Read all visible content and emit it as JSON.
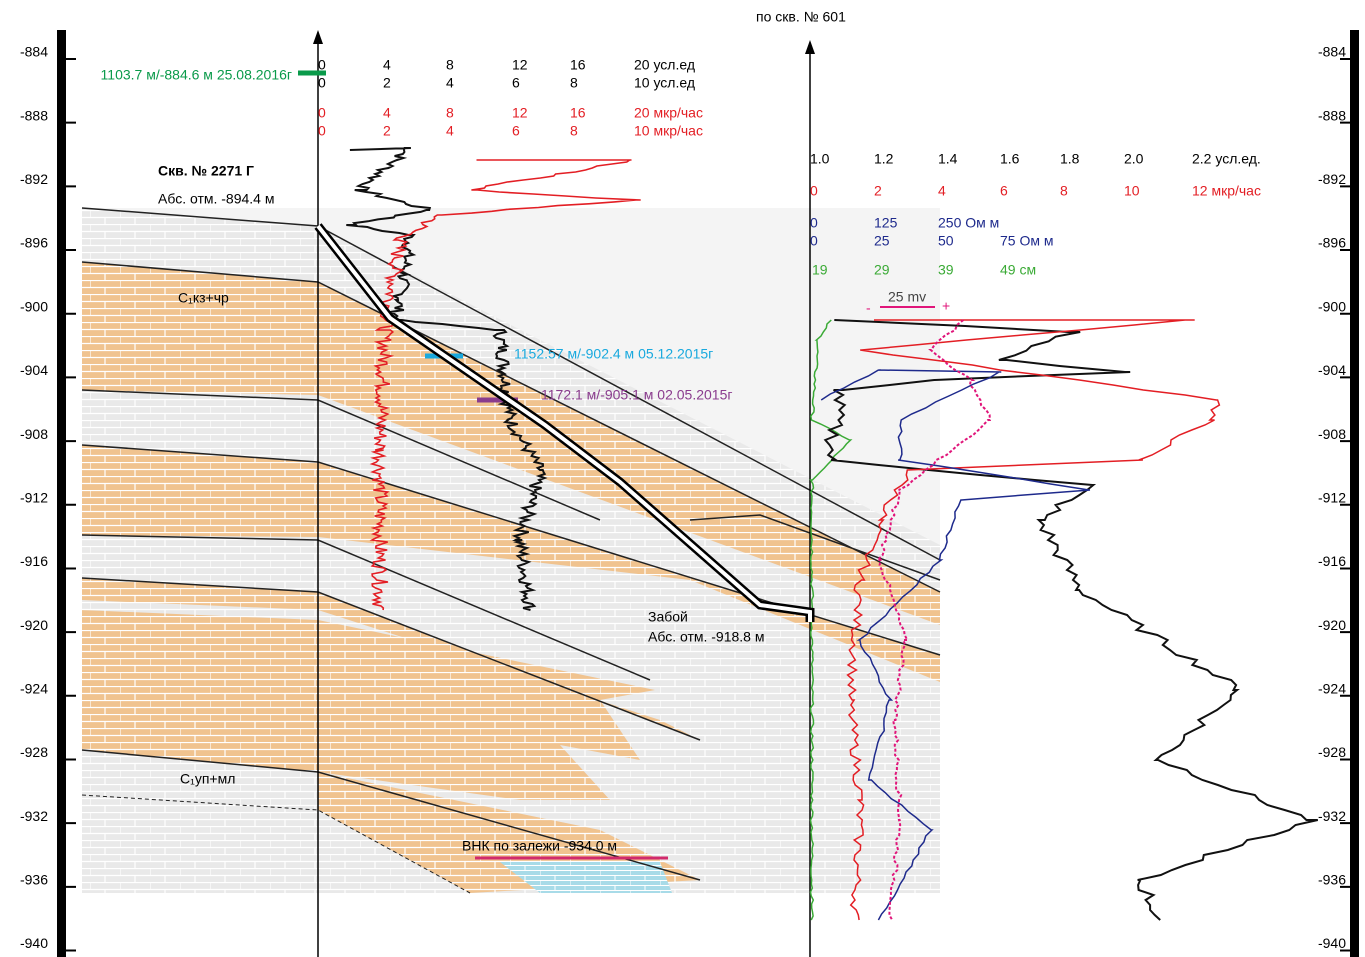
{
  "header": {
    "well_ref": "по скв. № 601",
    "well_name": "Скв. № 2271 Г",
    "well_alt": "Абс. отм. -894.4 м"
  },
  "depth_axis": {
    "ticks": [
      -884,
      -888,
      -892,
      -896,
      -900,
      -904,
      -908,
      -912,
      -916,
      -920,
      -924,
      -928,
      -932,
      -936,
      -940
    ]
  },
  "scales": {
    "gk_1": [
      "0",
      "4",
      "8",
      "12",
      "16",
      "20 усл.ед"
    ],
    "gk_2": [
      "0",
      "2",
      "4",
      "6",
      "8",
      "10 усл.ед"
    ],
    "ngk_1": [
      "0",
      "4",
      "8",
      "12",
      "16",
      "20 мкр/час"
    ],
    "ngk_2": [
      "0",
      "2",
      "4",
      "6",
      "8",
      "10 мкр/час"
    ],
    "r_ul": [
      "1.0",
      "1.2",
      "1.4",
      "1.6",
      "1.8",
      "2.0",
      "2.2 усл.ед."
    ],
    "r_mkr": [
      "0",
      "2",
      "4",
      "6",
      "8",
      "10",
      "12 мкр/час"
    ],
    "r_om1": [
      "0",
      "125",
      "250 Ом м"
    ],
    "r_om2": [
      "0",
      "25",
      "50",
      "75 Ом м"
    ],
    "r_cm": [
      "19",
      "29",
      "39",
      "49 см"
    ],
    "sp": "25 mv",
    "sp_minus": "-",
    "sp_plus": "+"
  },
  "annotations": {
    "mark_green": "1103.7 м/-884.6 м  25.08.2016г",
    "mark_cyan": "1152.57 м/-902.4 м  05.12.2015г",
    "mark_purple": "1172.1 м/-905.1 м  02.05.2015г",
    "layer_top": "С₁кз+чр",
    "layer_bottom": "С₁уп+мл",
    "bottom_hole": "Забой",
    "bottom_hole_alt": "Абс. отм. -918.8 м",
    "vnk": "ВНК по залежи -934.0 м"
  }
}
